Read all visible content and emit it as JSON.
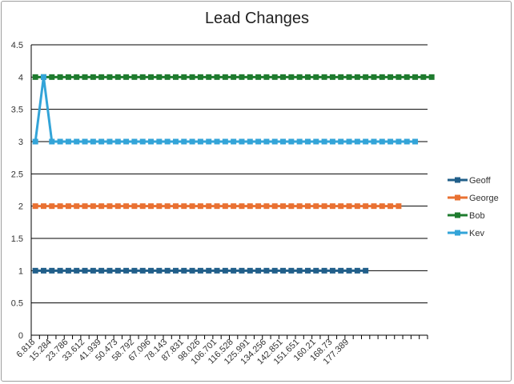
{
  "chart_data": {
    "type": "line",
    "title": "Lead Changes",
    "xlabel": "",
    "ylabel": "",
    "ylim": [
      0,
      4.5
    ],
    "y_ticks": [
      "0",
      "0.5",
      "1",
      "1.5",
      "2",
      "2.5",
      "3",
      "3.5",
      "4",
      "4.5"
    ],
    "grid": "horizontal",
    "legend_position": "right",
    "x_tick_labels": [
      "6.818",
      "15.284",
      "23.786",
      "33.612",
      "41.939",
      "50.473",
      "58.792",
      "67.096",
      "78.143",
      "87.831",
      "98.026",
      "106.701",
      "116.528",
      "125.991",
      "134.256",
      "142.851",
      "151.651",
      "160.21",
      "168.73",
      "177.389"
    ],
    "series": [
      {
        "name": "Geoff",
        "color": "#215f8a",
        "values": [
          1,
          1,
          1,
          1,
          1,
          1,
          1,
          1,
          1,
          1,
          1,
          1,
          1,
          1,
          1,
          1,
          1,
          1,
          1,
          1,
          1,
          1,
          1,
          1,
          1,
          1,
          1,
          1,
          1,
          1,
          1,
          1,
          1,
          1,
          1,
          1,
          1,
          1,
          1,
          1,
          1
        ]
      },
      {
        "name": "George",
        "color": "#e97132",
        "values": [
          2,
          2,
          2,
          2,
          2,
          2,
          2,
          2,
          2,
          2,
          2,
          2,
          2,
          2,
          2,
          2,
          2,
          2,
          2,
          2,
          2,
          2,
          2,
          2,
          2,
          2,
          2,
          2,
          2,
          2,
          2,
          2,
          2,
          2,
          2,
          2,
          2,
          2,
          2,
          2,
          2,
          2,
          2,
          2,
          2
        ]
      },
      {
        "name": "Bob",
        "color": "#1e7b2e",
        "values": [
          4,
          4,
          4,
          4,
          4,
          4,
          4,
          4,
          4,
          4,
          4,
          4,
          4,
          4,
          4,
          4,
          4,
          4,
          4,
          4,
          4,
          4,
          4,
          4,
          4,
          4,
          4,
          4,
          4,
          4,
          4,
          4,
          4,
          4,
          4,
          4,
          4,
          4,
          4,
          4,
          4,
          4,
          4,
          4,
          4,
          4,
          4,
          4,
          4
        ]
      },
      {
        "name": "Kev",
        "color": "#33a4d8",
        "values": [
          3,
          4,
          3,
          3,
          3,
          3,
          3,
          3,
          3,
          3,
          3,
          3,
          3,
          3,
          3,
          3,
          3,
          3,
          3,
          3,
          3,
          3,
          3,
          3,
          3,
          3,
          3,
          3,
          3,
          3,
          3,
          3,
          3,
          3,
          3,
          3,
          3,
          3,
          3,
          3,
          3,
          3,
          3,
          3,
          3,
          3,
          3
        ]
      }
    ]
  }
}
